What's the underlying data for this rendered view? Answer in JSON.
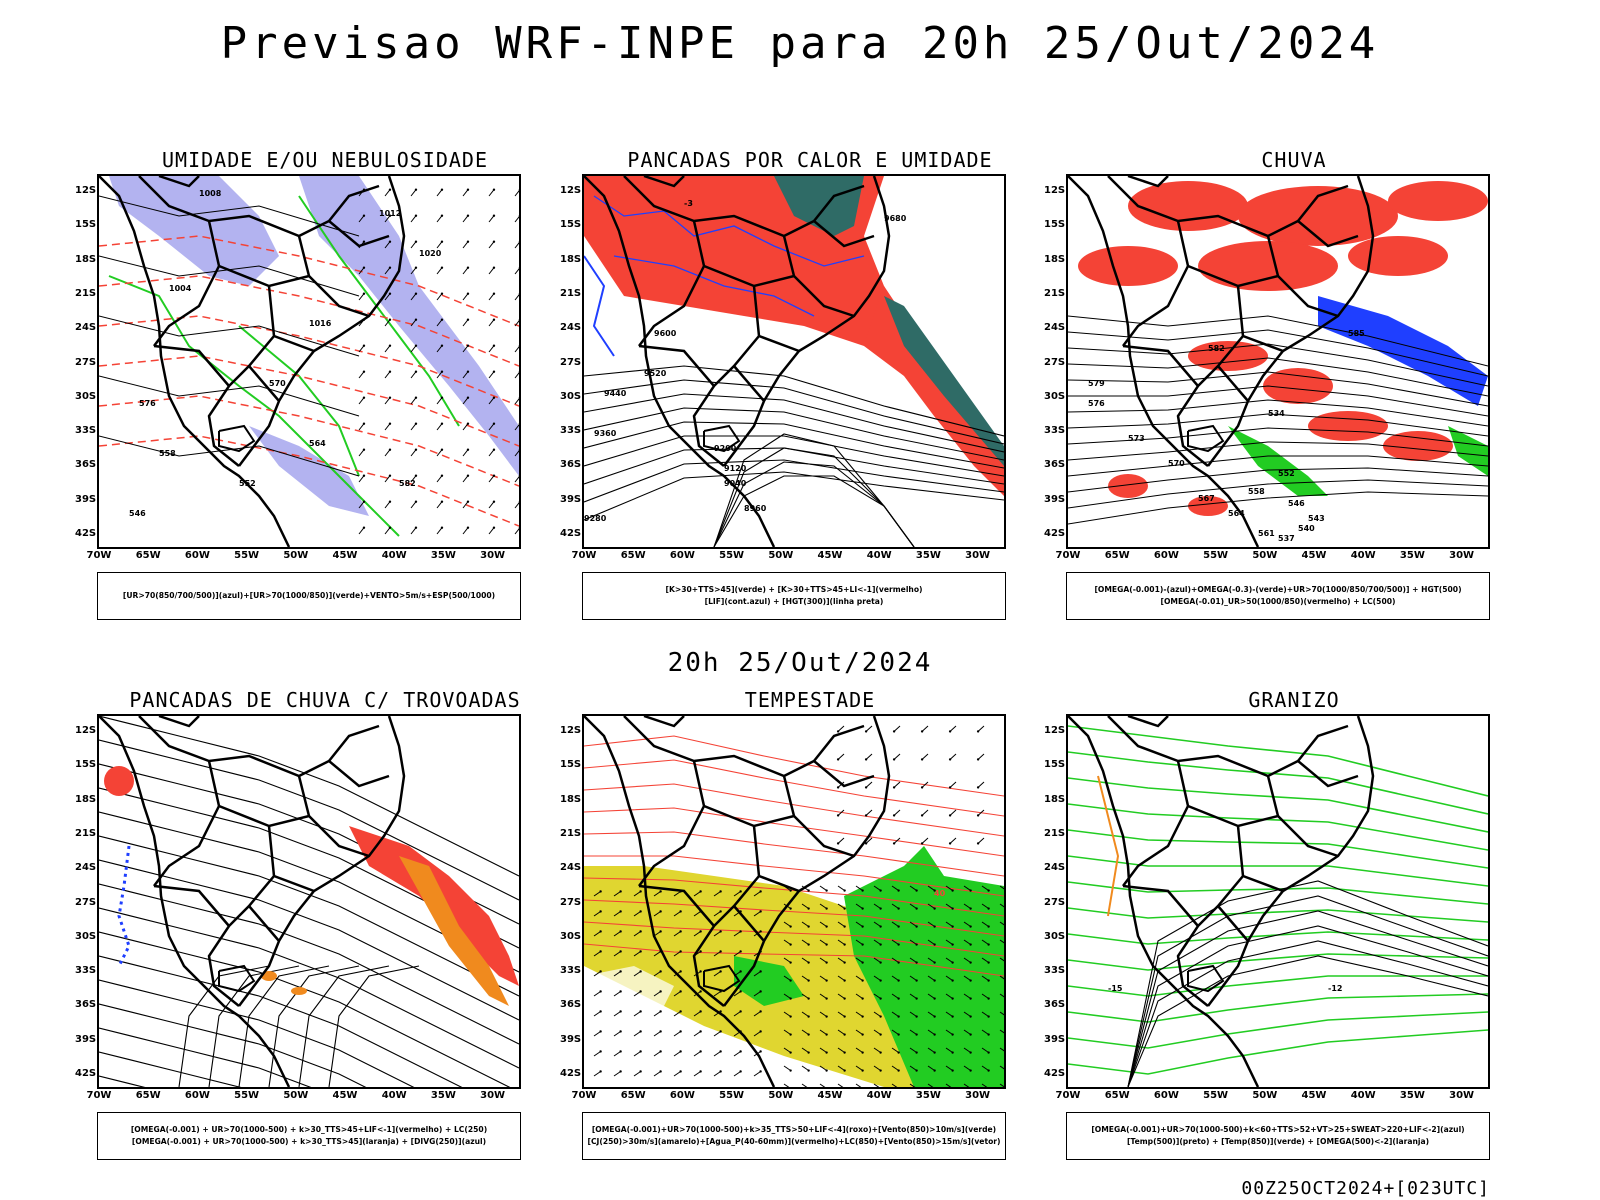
{
  "title": "Previsao WRF-INPE  para 20h 25/Out/2024",
  "middle_title": "20h 25/Out/2024",
  "footer": "00Z25OCT2024+[023UTC]",
  "lat_labels": [
    "12S",
    "15S",
    "18S",
    "21S",
    "24S",
    "27S",
    "30S",
    "33S",
    "36S",
    "39S",
    "42S"
  ],
  "lon_labels": [
    "70W",
    "65W",
    "60W",
    "55W",
    "50W",
    "45W",
    "40W",
    "35W",
    "30W"
  ],
  "colors": {
    "red": "#f44336",
    "blue": "#1f3fff",
    "green": "#22cc22",
    "lavender": "#b3b3f0",
    "teal": "#2f6b66",
    "yellow": "#e0d630",
    "orange": "#f08a1e",
    "contour": "#000000"
  },
  "panels": [
    {
      "id": "umidade",
      "title": "UMIDADE E/OU NEBULOSIDADE",
      "legend": [
        "[UR>70(850/700/500)](azul)+[UR>70(1000/850)](verde)+VENTO>5m/s+ESP(500/1000)"
      ],
      "contour_labels": [
        "1008",
        "1012",
        "1004",
        "1016",
        "1020",
        "576",
        "570",
        "564",
        "552",
        "558",
        "546",
        "582"
      ]
    },
    {
      "id": "pancadas",
      "title": "PANCADAS POR CALOR E UMIDADE",
      "legend": [
        "[K>30+TTS>45](verde) + [K>30+TTS>45+LI<-1](vermelho)",
        "[LIF](cont.azul) + [HGT(300)](linha preta)"
      ],
      "contour_labels": [
        "9680",
        "9600",
        "9520",
        "9440",
        "9360",
        "9280",
        "9200",
        "9120",
        "9040",
        "8960",
        "-3"
      ]
    },
    {
      "id": "chuva",
      "title": "CHUVA",
      "legend": [
        "[OMEGA(-0.001)-(azul)+OMEGA(-0.3)-(verde)+UR>70(1000/850/700/500)] + HGT(500)",
        "[OMEGA(-0.01)_UR>50(1000/850)(vermelho) + LC(500)"
      ],
      "contour_labels": [
        "582",
        "585",
        "579",
        "576",
        "573",
        "570",
        "567",
        "564",
        "561",
        "558",
        "552",
        "546",
        "543",
        "540",
        "537",
        "534"
      ]
    },
    {
      "id": "trovoadas",
      "title": "PANCADAS DE CHUVA C/ TROVOADAS",
      "legend": [
        "[OMEGA(-0.001) + UR>70(1000-500) + k>30_TTS>45+LIF<-1](vermelho) + LC(250)",
        "[OMEGA(-0.001) + UR>70(1000-500) + k>30_TTS>45](laranja) + [DIVG(250)](azul)"
      ],
      "contour_labels": []
    },
    {
      "id": "tempestade",
      "title": "TEMPESTADE",
      "legend": [
        "[OMEGA(-0.001)+UR>70(1000-500)+k>35_TTS>50+LIF<-4](roxo)+[Vento(850)>10m/s](verde)",
        "[CJ(250)>30m/s](amarelo)+[Agua_P(40-60mm)](vermelho)+LC(850)+[Vento(850)>15m/s](vetor)"
      ],
      "contour_labels": [
        "40"
      ]
    },
    {
      "id": "granizo",
      "title": "GRANIZO",
      "legend": [
        "[OMEGA(-0.001)+UR>70(1000-500)+k<60+TTS>52+VT>25+SWEAT>220+LIF<-2](azul)",
        "[Temp(500)](preto) + [Temp(850)](verde) + [OMEGA(500)<-2](laranja)"
      ],
      "contour_labels": [
        "-12",
        "-15"
      ]
    }
  ]
}
